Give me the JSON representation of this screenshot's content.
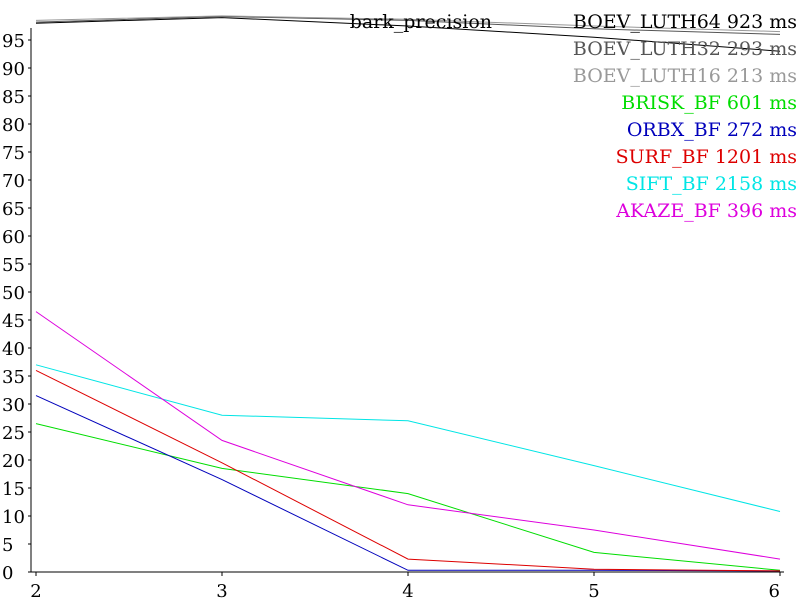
{
  "chart_data": {
    "type": "line",
    "title": "bark_precision",
    "xlabel": "",
    "ylabel": "",
    "x": [
      2,
      3,
      4,
      5,
      6
    ],
    "xlim": [
      2,
      6
    ],
    "ylim": [
      0,
      100
    ],
    "x_ticks": [
      "2",
      "3",
      "4",
      "5",
      "6"
    ],
    "y_ticks": [
      "0",
      "5",
      "10",
      "15",
      "20",
      "25",
      "30",
      "35",
      "40",
      "45",
      "50",
      "55",
      "60",
      "65",
      "70",
      "75",
      "80",
      "85",
      "90",
      "95"
    ],
    "grid": false,
    "legend_position": "top-right",
    "series": [
      {
        "name": "BOEV_LUTH64",
        "time": "923",
        "unit": "ms",
        "color": "#000000",
        "values": [
          98.0,
          99.0,
          97.5,
          95.5,
          93.0
        ]
      },
      {
        "name": "BOEV_LUTH32",
        "time": "293",
        "unit": "ms",
        "color": "#555555",
        "values": [
          98.2,
          99.2,
          98.5,
          97.0,
          96.0
        ]
      },
      {
        "name": "BOEV_LUTH16",
        "time": "213",
        "unit": "ms",
        "color": "#999999",
        "values": [
          98.5,
          99.3,
          98.7,
          97.5,
          96.5
        ]
      },
      {
        "name": "BRISK_BF",
        "time": "601",
        "unit": "ms",
        "color": "#00dd00",
        "values": [
          26.5,
          18.5,
          14.0,
          3.5,
          0.3
        ]
      },
      {
        "name": "ORBX_BF",
        "time": "272",
        "unit": "ms",
        "color": "#0000bb",
        "values": [
          31.5,
          16.5,
          0.3,
          0.3,
          0.2
        ]
      },
      {
        "name": "SURF_BF",
        "time": "1201",
        "unit": "ms",
        "color": "#dd0000",
        "values": [
          36.0,
          19.5,
          2.3,
          0.5,
          0.2
        ]
      },
      {
        "name": "SIFT_BF",
        "time": "2158",
        "unit": "ms",
        "color": "#00e5e5",
        "values": [
          37.0,
          28.0,
          27.0,
          19.0,
          10.8
        ]
      },
      {
        "name": "AKAZE_BF",
        "time": "396",
        "unit": "ms",
        "color": "#dd00dd",
        "values": [
          46.5,
          23.5,
          12.0,
          7.5,
          2.3
        ]
      }
    ]
  }
}
